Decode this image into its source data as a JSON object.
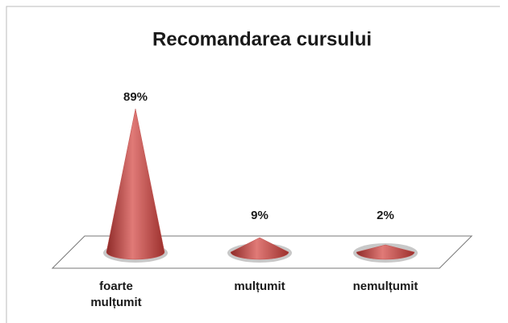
{
  "chart_data": {
    "type": "cone",
    "title": "Recomandarea cursului",
    "categories": [
      "foarte mulțumit",
      "mulțumit",
      "nemulțumit"
    ],
    "values": [
      89,
      9,
      2
    ],
    "value_labels": [
      "89%",
      "9%",
      "2%"
    ],
    "color": "#c0504d"
  }
}
